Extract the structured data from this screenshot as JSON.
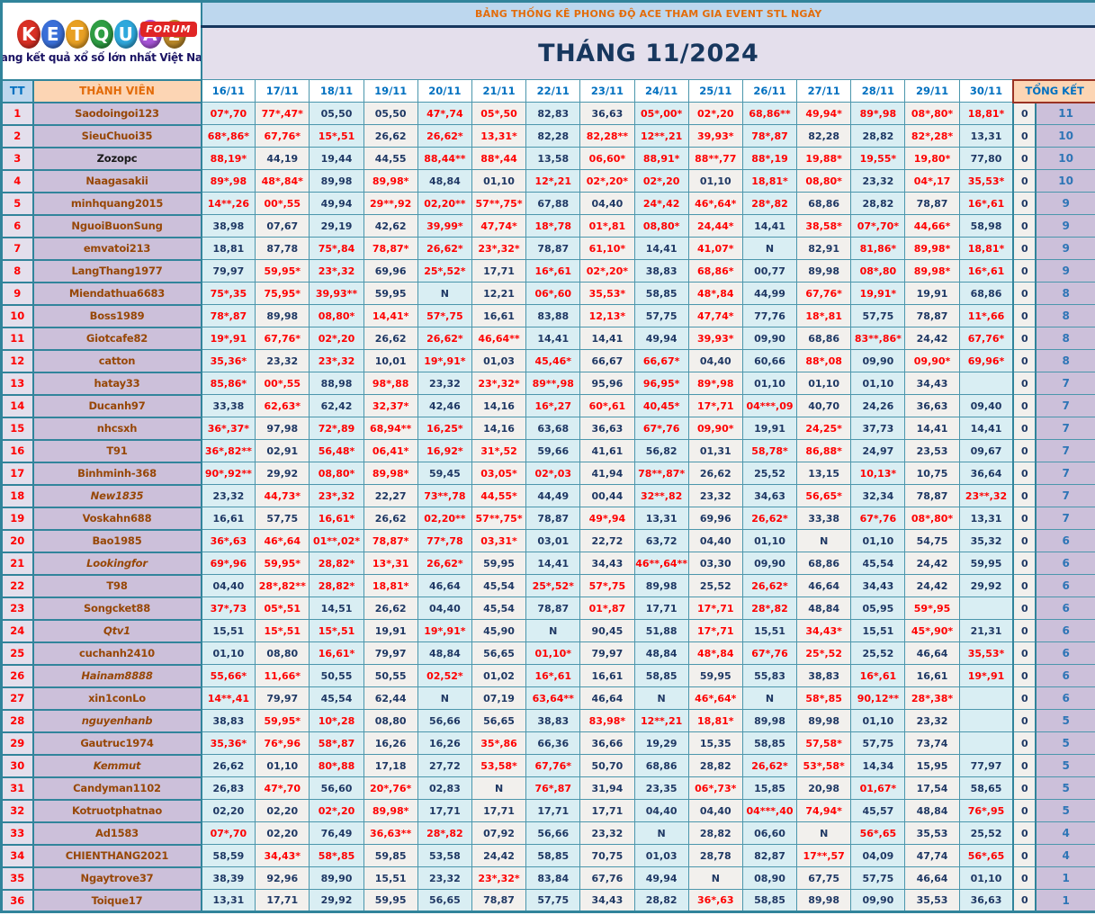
{
  "logo": {
    "letters": [
      "K",
      "E",
      "T",
      "Q",
      "U",
      "A",
      "2"
    ],
    "letter_colors": [
      "#d93025",
      "#3a6fd8",
      "#e8a023",
      "#2f9e44",
      "#2fa8dc",
      "#a855d8",
      "#b8872a"
    ],
    "badge": "FORUM",
    "badge_color": "#e02525",
    "tagline": "Trang kết quả xổ số lớn nhất Việt Nam"
  },
  "banner": {
    "title": "BẢNG THỐNG KÊ PHONG ĐỘ ACE THAM GIA EVENT STL NGÀY",
    "month": "THÁNG 11/2024"
  },
  "colors": {
    "border_teal": "#31849b",
    "cell_blue": "#d9eef3",
    "cell_white": "#f2f0ed",
    "value_red": "#ff0000",
    "value_navy": "#1f3864",
    "member_bg": "#ccc0da",
    "tt_bg": "#e4dfec",
    "header_peach": "#fcd5b4",
    "header_blue": "#bdd7ee"
  },
  "table": {
    "tt_header": "TT",
    "member_header": "THÀNH VIÊN",
    "total_header": "TỔNG KẾT",
    "dates": [
      "16/11",
      "17/11",
      "18/11",
      "19/11",
      "20/11",
      "21/11",
      "22/11",
      "23/11",
      "24/11",
      "25/11",
      "26/11",
      "27/11",
      "28/11",
      "29/11",
      "30/11"
    ],
    "rows": [
      {
        "tt": "1",
        "name": "Saodoingoi123",
        "style": "",
        "values": [
          "07*,70",
          "77*,47*",
          "05,50",
          "05,50",
          "47*,74",
          "05*,50",
          "82,83",
          "36,63",
          "05*,00*",
          "02*,20",
          "68,86**",
          "49,94*",
          "89*,98",
          "08*,80*",
          "18,81*"
        ],
        "zero": "0",
        "total": "11"
      },
      {
        "tt": "2",
        "name": "SieuChuoi35",
        "style": "",
        "values": [
          "68*,86*",
          "67,76*",
          "15*,51",
          "26,62",
          "26,62*",
          "13,31*",
          "82,28",
          "82,28**",
          "12**,21",
          "39,93*",
          "78*,87",
          "82,28",
          "28,82",
          "82*,28*",
          "13,31"
        ],
        "zero": "0",
        "total": "10"
      },
      {
        "tt": "3",
        "name": "Zozopc",
        "style": "black",
        "values": [
          "88,19*",
          "44,19",
          "19,44",
          "44,55",
          "88,44**",
          "88*,44",
          "13,58",
          "06,60*",
          "88,91*",
          "88**,77",
          "88*,19",
          "19,88*",
          "19,55*",
          "19,80*",
          "77,80"
        ],
        "zero": "0",
        "total": "10"
      },
      {
        "tt": "4",
        "name": "Naagasakii",
        "style": "",
        "values": [
          "89*,98",
          "48*,84*",
          "89,98",
          "89,98*",
          "48,84",
          "01,10",
          "12*,21",
          "02*,20*",
          "02*,20",
          "01,10",
          "18,81*",
          "08,80*",
          "23,32",
          "04*,17",
          "35,53*"
        ],
        "zero": "0",
        "total": "10"
      },
      {
        "tt": "5",
        "name": "minhquang2015",
        "style": "",
        "values": [
          "14**,26",
          "00*,55",
          "49,94",
          "29**,92",
          "02,20**",
          "57**,75*",
          "67,88",
          "04,40",
          "24*,42",
          "46*,64*",
          "28*,82",
          "68,86",
          "28,82",
          "78,87",
          "16*,61"
        ],
        "zero": "0",
        "total": "9"
      },
      {
        "tt": "6",
        "name": "NguoiBuonSung",
        "style": "",
        "values": [
          "38,98",
          "07,67",
          "29,19",
          "42,62",
          "39,99*",
          "47,74*",
          "18*,78",
          "01*,81",
          "08,80*",
          "24,44*",
          "14,41",
          "38,58*",
          "07*,70*",
          "44,66*",
          "58,98"
        ],
        "zero": "0",
        "total": "9"
      },
      {
        "tt": "7",
        "name": "emvatoi213",
        "style": "",
        "values": [
          "18,81",
          "87,78",
          "75*,84",
          "78,87*",
          "26,62*",
          "23*,32*",
          "78,87",
          "61,10*",
          "14,41",
          "41,07*",
          "N",
          "82,91",
          "81,86*",
          "89,98*",
          "18,81*"
        ],
        "zero": "0",
        "total": "9"
      },
      {
        "tt": "8",
        "name": "LangThang1977",
        "style": "",
        "values": [
          "79,97",
          "59,95*",
          "23*,32",
          "69,96",
          "25*,52*",
          "17,71",
          "16*,61",
          "02*,20*",
          "38,83",
          "68,86*",
          "00,77",
          "89,98",
          "08*,80",
          "89,98*",
          "16*,61"
        ],
        "zero": "0",
        "total": "9"
      },
      {
        "tt": "9",
        "name": "Miendathua6683",
        "style": "",
        "values": [
          "75*,35",
          "75,95*",
          "39,93**",
          "59,95",
          "N",
          "12,21",
          "06*,60",
          "35,53*",
          "58,85",
          "48*,84",
          "44,99",
          "67,76*",
          "19,91*",
          "19,91",
          "68,86"
        ],
        "zero": "0",
        "total": "8"
      },
      {
        "tt": "10",
        "name": "Boss1989",
        "style": "",
        "values": [
          "78*,87",
          "89,98",
          "08,80*",
          "14,41*",
          "57*,75",
          "16,61",
          "83,88",
          "12,13*",
          "57,75",
          "47,74*",
          "77,76",
          "18*,81",
          "57,75",
          "78,87",
          "11*,66"
        ],
        "zero": "0",
        "total": "8"
      },
      {
        "tt": "11",
        "name": "Giotcafe82",
        "style": "",
        "values": [
          "19*,91",
          "67,76*",
          "02*,20",
          "26,62",
          "26,62*",
          "46,64**",
          "14,41",
          "14,41",
          "49,94",
          "39,93*",
          "09,90",
          "68,86",
          "83**,86*",
          "24,42",
          "67,76*"
        ],
        "zero": "0",
        "total": "8"
      },
      {
        "tt": "12",
        "name": "catton",
        "style": "",
        "values": [
          "35,36*",
          "23,32",
          "23*,32",
          "10,01",
          "19*,91*",
          "01,03",
          "45,46*",
          "66,67",
          "66,67*",
          "04,40",
          "60,66",
          "88*,08",
          "09,90",
          "09,90*",
          "69,96*"
        ],
        "zero": "0",
        "total": "8"
      },
      {
        "tt": "13",
        "name": "hatay33",
        "style": "",
        "values": [
          "85,86*",
          "00*,55",
          "88,98",
          "98*,88",
          "23,32",
          "23*,32*",
          "89**,98",
          "95,96",
          "96,95*",
          "89*,98",
          "01,10",
          "01,10",
          "01,10",
          "34,43",
          ""
        ],
        "zero": "0",
        "total": "7"
      },
      {
        "tt": "14",
        "name": "Ducanh97",
        "style": "",
        "values": [
          "33,38",
          "62,63*",
          "62,42",
          "32,37*",
          "42,46",
          "14,16",
          "16*,27",
          "60*,61",
          "40,45*",
          "17*,71",
          "04***,09",
          "40,70",
          "24,26",
          "36,63",
          "09,40"
        ],
        "zero": "0",
        "total": "7"
      },
      {
        "tt": "15",
        "name": "nhcsxh",
        "style": "",
        "values": [
          "36*,37*",
          "97,98",
          "72*,89",
          "68,94**",
          "16,25*",
          "14,16",
          "63,68",
          "36,63",
          "67*,76",
          "09,90*",
          "19,91",
          "24,25*",
          "37,73",
          "14,41",
          "14,41"
        ],
        "zero": "0",
        "total": "7"
      },
      {
        "tt": "16",
        "name": "T91",
        "style": "",
        "values": [
          "36*,82**",
          "02,91",
          "56,48*",
          "06,41*",
          "16,92*",
          "31*,52",
          "59,66",
          "41,61",
          "56,82",
          "01,31",
          "58,78*",
          "86,88*",
          "24,97",
          "23,53",
          "09,67"
        ],
        "zero": "0",
        "total": "7"
      },
      {
        "tt": "17",
        "name": "Binhminh-368",
        "style": "",
        "values": [
          "90*,92**",
          "29,92",
          "08,80*",
          "89,98*",
          "59,45",
          "03,05*",
          "02*,03",
          "41,94",
          "78**,87*",
          "26,62",
          "25,52",
          "13,15",
          "10,13*",
          "10,75",
          "36,64"
        ],
        "zero": "0",
        "total": "7"
      },
      {
        "tt": "18",
        "name": "New1835",
        "style": "italic",
        "values": [
          "23,32",
          "44,73*",
          "23*,32",
          "22,27",
          "73**,78",
          "44,55*",
          "44,49",
          "00,44",
          "32**,82",
          "23,32",
          "34,63",
          "56,65*",
          "32,34",
          "78,87",
          "23**,32"
        ],
        "zero": "0",
        "total": "7"
      },
      {
        "tt": "19",
        "name": "Voskahn688",
        "style": "",
        "values": [
          "16,61",
          "57,75",
          "16,61*",
          "26,62",
          "02,20**",
          "57**,75*",
          "78,87",
          "49*,94",
          "13,31",
          "69,96",
          "26,62*",
          "33,38",
          "67*,76",
          "08*,80*",
          "13,31"
        ],
        "zero": "0",
        "total": "7"
      },
      {
        "tt": "20",
        "name": "Bao1985",
        "style": "",
        "values": [
          "36*,63",
          "46*,64",
          "01**,02*",
          "78,87*",
          "77*,78",
          "03,31*",
          "03,01",
          "22,72",
          "63,72",
          "04,40",
          "01,10",
          "N",
          "01,10",
          "54,75",
          "35,32"
        ],
        "zero": "0",
        "total": "6"
      },
      {
        "tt": "21",
        "name": "Lookingfor",
        "style": "italic",
        "values": [
          "69*,96",
          "59,95*",
          "28,82*",
          "13*,31",
          "26,62*",
          "59,95",
          "14,41",
          "34,43",
          "46**,64**",
          "03,30",
          "09,90",
          "68,86",
          "45,54",
          "24,42",
          "59,95"
        ],
        "zero": "0",
        "total": "6"
      },
      {
        "tt": "22",
        "name": "T98",
        "style": "",
        "values": [
          "04,40",
          "28*,82**",
          "28,82*",
          "18,81*",
          "46,64",
          "45,54",
          "25*,52*",
          "57*,75",
          "89,98",
          "25,52",
          "26,62*",
          "46,64",
          "34,43",
          "24,42",
          "29,92"
        ],
        "zero": "0",
        "total": "6"
      },
      {
        "tt": "23",
        "name": "Songcket88",
        "style": "",
        "values": [
          "37*,73",
          "05*,51",
          "14,51",
          "26,62",
          "04,40",
          "45,54",
          "78,87",
          "01*,87",
          "17,71",
          "17*,71",
          "28*,82",
          "48,84",
          "05,95",
          "59*,95",
          ""
        ],
        "zero": "0",
        "total": "6"
      },
      {
        "tt": "24",
        "name": "Qtv1",
        "style": "italic",
        "values": [
          "15,51",
          "15*,51",
          "15*,51",
          "19,91",
          "19*,91*",
          "45,90",
          "N",
          "90,45",
          "51,88",
          "17*,71",
          "15,51",
          "34,43*",
          "15,51",
          "45*,90*",
          "21,31"
        ],
        "zero": "0",
        "total": "6"
      },
      {
        "tt": "25",
        "name": "cuchanh2410",
        "style": "",
        "values": [
          "01,10",
          "08,80",
          "16,61*",
          "79,97",
          "48,84",
          "56,65",
          "01,10*",
          "79,97",
          "48,84",
          "48*,84",
          "67*,76",
          "25*,52",
          "25,52",
          "46,64",
          "35,53*"
        ],
        "zero": "0",
        "total": "6"
      },
      {
        "tt": "26",
        "name": "Hainam8888",
        "style": "italic",
        "values": [
          "55,66*",
          "11,66*",
          "50,55",
          "50,55",
          "02,52*",
          "01,02",
          "16*,61",
          "16,61",
          "58,85",
          "59,95",
          "55,83",
          "38,83",
          "16*,61",
          "16,61",
          "19*,91"
        ],
        "zero": "0",
        "total": "6"
      },
      {
        "tt": "27",
        "name": "xin1conLo",
        "style": "",
        "values": [
          "14**,41",
          "79,97",
          "45,54",
          "62,44",
          "N",
          "07,19",
          "63,64**",
          "46,64",
          "N",
          "46*,64*",
          "N",
          "58*,85",
          "90,12**",
          "28*,38*",
          ""
        ],
        "zero": "0",
        "total": "6"
      },
      {
        "tt": "28",
        "name": "nguyenhanb",
        "style": "italic",
        "values": [
          "38,83",
          "59,95*",
          "10*,28",
          "08,80",
          "56,66",
          "56,65",
          "38,83",
          "83,98*",
          "12**,21",
          "18,81*",
          "89,98",
          "89,98",
          "01,10",
          "23,32",
          ""
        ],
        "zero": "0",
        "total": "5"
      },
      {
        "tt": "29",
        "name": "Gautruc1974",
        "style": "",
        "values": [
          "35,36*",
          "76*,96",
          "58*,87",
          "16,26",
          "16,26",
          "35*,86",
          "66,36",
          "36,66",
          "19,29",
          "15,35",
          "58,85",
          "57,58*",
          "57,75",
          "73,74",
          ""
        ],
        "zero": "0",
        "total": "5"
      },
      {
        "tt": "30",
        "name": "Kemmut",
        "style": "italic",
        "values": [
          "26,62",
          "01,10",
          "80*,88",
          "17,18",
          "27,72",
          "53,58*",
          "67,76*",
          "50,70",
          "68,86",
          "28,82",
          "26,62*",
          "53*,58*",
          "14,34",
          "15,95",
          "77,97"
        ],
        "zero": "0",
        "total": "5"
      },
      {
        "tt": "31",
        "name": "Candyman1102",
        "style": "",
        "values": [
          "26,83",
          "47*,70",
          "56,60",
          "20*,76*",
          "02,83",
          "N",
          "76*,87",
          "31,94",
          "23,35",
          "06*,73*",
          "15,85",
          "20,98",
          "01,67*",
          "17,54",
          "58,65"
        ],
        "zero": "0",
        "total": "5"
      },
      {
        "tt": "32",
        "name": "Kotruotphatnao",
        "style": "",
        "values": [
          "02,20",
          "02,20",
          "02*,20",
          "89,98*",
          "17,71",
          "17,71",
          "17,71",
          "17,71",
          "04,40",
          "04,40",
          "04***,40",
          "74,94*",
          "45,57",
          "48,84",
          "76*,95"
        ],
        "zero": "0",
        "total": "5"
      },
      {
        "tt": "33",
        "name": "Ad1583",
        "style": "",
        "values": [
          "07*,70",
          "02,20",
          "76,49",
          "36,63**",
          "28*,82",
          "07,92",
          "56,66",
          "23,32",
          "N",
          "28,82",
          "06,60",
          "N",
          "56*,65",
          "35,53",
          "25,52"
        ],
        "zero": "0",
        "total": "4"
      },
      {
        "tt": "34",
        "name": "CHIENTHANG2021",
        "style": "",
        "values": [
          "58,59",
          "34,43*",
          "58*,85",
          "59,85",
          "53,58",
          "24,42",
          "58,85",
          "70,75",
          "01,03",
          "28,78",
          "82,87",
          "17**,57",
          "04,09",
          "47,74",
          "56*,65"
        ],
        "zero": "0",
        "total": "4"
      },
      {
        "tt": "35",
        "name": "Ngaytrove37",
        "style": "",
        "values": [
          "38,39",
          "92,96",
          "89,90",
          "15,51",
          "23,32",
          "23*,32*",
          "83,84",
          "67,76",
          "49,94",
          "N",
          "08,90",
          "67,75",
          "57,75",
          "46,64",
          "01,10"
        ],
        "zero": "0",
        "total": "1"
      },
      {
        "tt": "36",
        "name": "Toique17",
        "style": "",
        "values": [
          "13,31",
          "17,71",
          "29,92",
          "59,95",
          "56,65",
          "78,87",
          "57,75",
          "34,43",
          "28,82",
          "36*,63",
          "58,85",
          "89,98",
          "09,90",
          "35,53",
          "36,63"
        ],
        "zero": "0",
        "total": "1"
      }
    ]
  }
}
